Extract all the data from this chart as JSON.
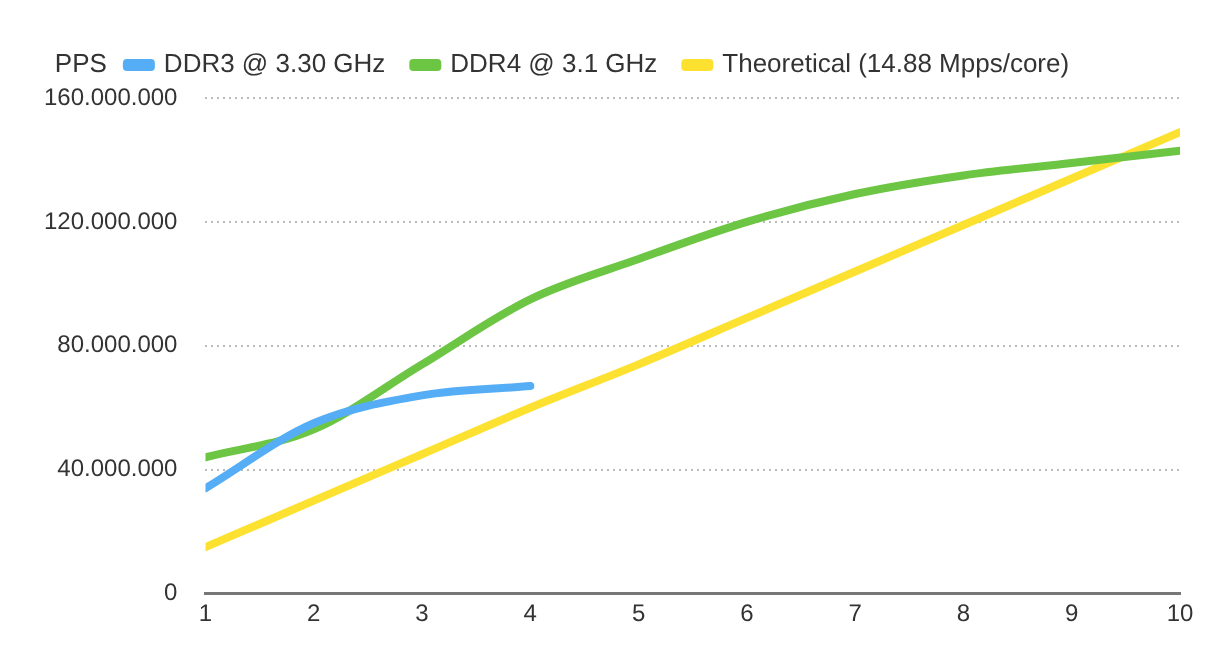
{
  "chart_data": {
    "type": "line",
    "ylabel": "PPS",
    "x": [
      1,
      2,
      3,
      4,
      5,
      6,
      7,
      8,
      9,
      10
    ],
    "series": [
      {
        "name": "DDR3 @ 3.30 GHz",
        "color": "#55aef5",
        "values": [
          34000000,
          55000000,
          64000000,
          67000000,
          null,
          null,
          null,
          null,
          null,
          null
        ]
      },
      {
        "name": "DDR4 @ 3.1 GHz",
        "color": "#6cc644",
        "values": [
          44000000,
          53000000,
          74000000,
          95000000,
          108000000,
          120000000,
          129000000,
          135000000,
          139000000,
          143000000
        ]
      },
      {
        "name": "Theoretical (14.88 Mpps/core)",
        "color": "#fde131",
        "values": [
          15000000,
          30000000,
          45000000,
          60000000,
          74000000,
          89000000,
          104000000,
          119000000,
          134000000,
          149000000
        ]
      }
    ],
    "xlim": [
      1,
      10
    ],
    "xticks": [
      1,
      2,
      3,
      4,
      5,
      6,
      7,
      8,
      9,
      10
    ],
    "ylim": [
      0,
      160000000
    ],
    "yticks": [
      0,
      {
        "value": 40000000,
        "label": "40.000.000"
      },
      {
        "value": 80000000,
        "label": "80.000.000"
      },
      {
        "value": 120000000,
        "label": "120.000.000"
      },
      {
        "value": 160000000,
        "label": "160.000.000"
      }
    ],
    "grid": "y",
    "legend": "top",
    "marker": "none",
    "line_style": "solid"
  }
}
